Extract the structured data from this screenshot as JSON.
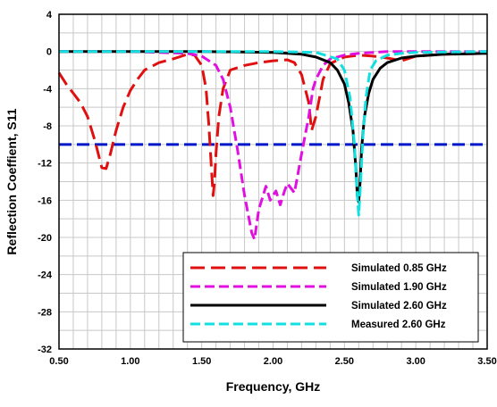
{
  "chart_data": {
    "type": "line",
    "title": "",
    "xlabel": "Frequency, GHz",
    "ylabel": "Reflection Coeffient, S11",
    "xlim": [
      0.5,
      3.5
    ],
    "ylim": [
      -32,
      4
    ],
    "xticks": [
      0.5,
      1.0,
      1.5,
      2.0,
      2.5,
      3.0,
      3.5
    ],
    "xtick_labels": [
      "0.50",
      "1.00",
      "1.50",
      "2.00",
      "2.50",
      "3.00",
      "3.50"
    ],
    "yticks": [
      4,
      0,
      -4,
      -8,
      -12,
      -16,
      -20,
      -24,
      -28,
      -32
    ],
    "ytick_labels": [
      "4",
      "0",
      "-4",
      "-8",
      "-12",
      "-16",
      "-20",
      "-24",
      "-28",
      "-32"
    ],
    "grid": true,
    "legend_position": "bottom-right",
    "reference_line": {
      "y": -10,
      "color": "#0018c8"
    },
    "series": [
      {
        "name": "Simulated 0.85 GHz",
        "color": "#e01010",
        "style": "dashed",
        "x": [
          0.5,
          0.55,
          0.6,
          0.65,
          0.7,
          0.75,
          0.8,
          0.83,
          0.86,
          0.9,
          0.95,
          1.0,
          1.05,
          1.1,
          1.2,
          1.3,
          1.4,
          1.45,
          1.5,
          1.53,
          1.55,
          1.57,
          1.58,
          1.59,
          1.6,
          1.62,
          1.65,
          1.7,
          1.8,
          1.9,
          2.0,
          2.1,
          2.15,
          2.2,
          2.25,
          2.27,
          2.3,
          2.35,
          2.4,
          2.5,
          2.6,
          2.7,
          2.8,
          2.9,
          3.0,
          3.2,
          3.5
        ],
        "y": [
          -2.3,
          -3.5,
          -4.5,
          -5.5,
          -7.0,
          -9.5,
          -12.5,
          -12.6,
          -11.0,
          -8.5,
          -6.0,
          -4.2,
          -3.0,
          -2.0,
          -1.2,
          -0.8,
          -0.3,
          -0.4,
          -1.5,
          -4.0,
          -8.0,
          -13.0,
          -15.5,
          -14.0,
          -11.0,
          -7.0,
          -4.0,
          -2.0,
          -1.5,
          -1.2,
          -1.0,
          -0.9,
          -1.2,
          -2.5,
          -5.5,
          -8.5,
          -7.0,
          -3.0,
          -1.3,
          -0.6,
          -0.4,
          -0.5,
          -0.7,
          -1.0,
          -0.5,
          -0.3,
          -0.2
        ]
      },
      {
        "name": "Simulated 1.90 GHz",
        "color": "#e010e0",
        "style": "dashed",
        "x": [
          0.5,
          0.8,
          1.0,
          1.2,
          1.4,
          1.5,
          1.6,
          1.65,
          1.7,
          1.75,
          1.8,
          1.85,
          1.87,
          1.9,
          1.95,
          1.98,
          2.02,
          2.05,
          2.08,
          2.1,
          2.15,
          2.2,
          2.25,
          2.28,
          2.3,
          2.35,
          2.4,
          2.5,
          2.6,
          2.7,
          2.8,
          3.0,
          3.5
        ],
        "y": [
          0,
          0,
          0,
          -0.1,
          -0.2,
          -0.5,
          -1.5,
          -3.0,
          -6.0,
          -10.5,
          -15.5,
          -19.5,
          -20.2,
          -17.0,
          -14.5,
          -16.0,
          -15.0,
          -16.5,
          -15.0,
          -14.2,
          -15.2,
          -11.0,
          -7.0,
          -4.0,
          -3.0,
          -1.5,
          -0.8,
          -0.4,
          -0.2,
          -0.1,
          0,
          0,
          0
        ]
      },
      {
        "name": "Simulated 2.60 GHz",
        "color": "#000000",
        "style": "solid",
        "x": [
          0.5,
          1.0,
          1.5,
          2.0,
          2.2,
          2.3,
          2.4,
          2.45,
          2.5,
          2.53,
          2.56,
          2.58,
          2.59,
          2.6,
          2.61,
          2.62,
          2.64,
          2.67,
          2.7,
          2.75,
          2.8,
          2.9,
          3.0,
          3.2,
          3.5
        ],
        "y": [
          0,
          0,
          0,
          -0.1,
          -0.3,
          -0.6,
          -1.2,
          -2.0,
          -3.5,
          -5.5,
          -8.5,
          -12.5,
          -15.5,
          -16.2,
          -14.0,
          -10.5,
          -7.0,
          -4.5,
          -3.0,
          -1.8,
          -1.2,
          -0.7,
          -0.5,
          -0.3,
          -0.2
        ]
      },
      {
        "name": "Measured 2.60 GHz",
        "color": "#10e0e0",
        "style": "dashed",
        "x": [
          0.5,
          1.0,
          1.5,
          2.0,
          2.3,
          2.45,
          2.5,
          2.54,
          2.57,
          2.59,
          2.6,
          2.61,
          2.63,
          2.65,
          2.68,
          2.72,
          2.8,
          2.9,
          3.0,
          3.5
        ],
        "y": [
          0,
          0,
          0,
          0,
          -0.1,
          -0.8,
          -2.0,
          -5.0,
          -10.0,
          -15.5,
          -17.6,
          -15.0,
          -9.0,
          -5.0,
          -2.0,
          -1.0,
          -0.4,
          -0.2,
          -0.1,
          0
        ]
      }
    ]
  }
}
